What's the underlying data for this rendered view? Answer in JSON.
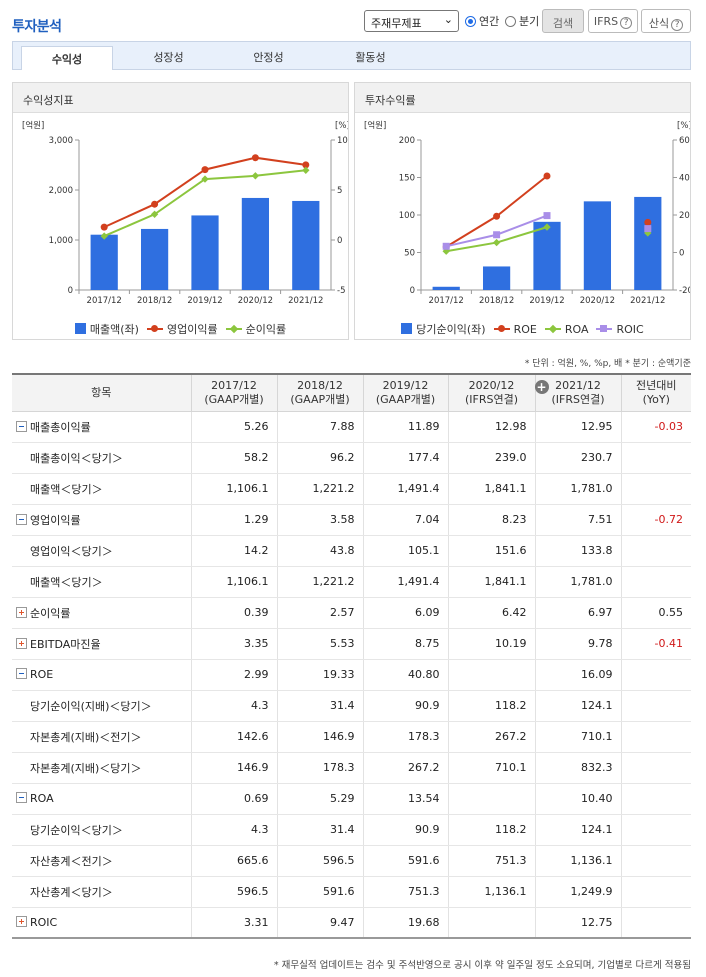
{
  "header": {
    "title": "투자분석",
    "select_value": "주재무제표",
    "radio_annual": "연간",
    "radio_quarter": "분기",
    "search_label": "검색",
    "ifrs_label": "IFRS",
    "calc_label": "산식",
    "help_glyph": "?"
  },
  "tabs": [
    "수익성",
    "성장성",
    "안정성",
    "활동성"
  ],
  "chart_left": {
    "title": "수익성지표",
    "unit_left": "[억원]",
    "unit_right": "[%]",
    "type": "bar-line",
    "categories": [
      "2017/12",
      "2018/12",
      "2019/12",
      "2020/12",
      "2021/12"
    ],
    "ylim_left": [
      0,
      3000
    ],
    "yticks_left": [
      "0",
      "1,000",
      "2,000",
      "3,000"
    ],
    "ylim_right": [
      -5,
      10
    ],
    "yticks_right": [
      "-5",
      "0",
      "5",
      "10"
    ],
    "bars": {
      "name": "매출액(좌)",
      "values": [
        1106.1,
        1221.2,
        1491.4,
        1841.1,
        1781.0
      ],
      "color": "#2f6fe0"
    },
    "lines": [
      {
        "name": "영업이익률",
        "values": [
          1.29,
          3.58,
          7.04,
          8.23,
          7.51
        ],
        "color": "#d2401e",
        "marker": "circle"
      },
      {
        "name": "순이익률",
        "values": [
          0.39,
          2.57,
          6.09,
          6.42,
          6.97
        ],
        "color": "#8cc63e",
        "marker": "diamond"
      }
    ]
  },
  "chart_right": {
    "title": "투자수익률",
    "unit_left": "[억원]",
    "unit_right": "[%]",
    "type": "bar-line",
    "categories": [
      "2017/12",
      "2018/12",
      "2019/12",
      "2020/12",
      "2021/12"
    ],
    "ylim_left": [
      0,
      200
    ],
    "yticks_left": [
      "0",
      "50",
      "100",
      "150",
      "200"
    ],
    "ylim_right": [
      -20,
      60
    ],
    "yticks_right": [
      "-20",
      "0",
      "20",
      "40",
      "60"
    ],
    "bars": {
      "name": "당기순이익(좌)",
      "values": [
        4.3,
        31.4,
        90.9,
        118.2,
        124.1
      ],
      "color": "#2f6fe0"
    },
    "lines": [
      {
        "name": "ROE",
        "values": [
          2.99,
          19.33,
          40.8,
          null,
          16.09
        ],
        "color": "#d2401e",
        "marker": "circle"
      },
      {
        "name": "ROA",
        "values": [
          0.69,
          5.29,
          13.54,
          null,
          10.4
        ],
        "color": "#8cc63e",
        "marker": "diamond"
      },
      {
        "name": "ROIC",
        "values": [
          3.31,
          9.47,
          19.68,
          null,
          12.75
        ],
        "color": "#a98ee8",
        "marker": "square"
      }
    ]
  },
  "unit_note": "* 단위 : 억원, %, %p, 배   * 분기 : 순액기준",
  "table": {
    "item_header": "항목",
    "columns": [
      {
        "period": "2017/12",
        "basis": "(GAAP개별)"
      },
      {
        "period": "2018/12",
        "basis": "(GAAP개별)"
      },
      {
        "period": "2019/12",
        "basis": "(GAAP개별)"
      },
      {
        "period": "2020/12",
        "basis": "(IFRS연결)"
      },
      {
        "period": "2021/12",
        "basis": "(IFRS연결)"
      }
    ],
    "yoy_header": "전년대비",
    "yoy_sub": "(YoY)",
    "expand_glyph": "+",
    "rows": [
      {
        "label": "매출총이익률",
        "toggle": "minus",
        "values": [
          "5.26",
          "7.88",
          "11.89",
          "12.98",
          "12.95"
        ],
        "yoy": "-0.03"
      },
      {
        "label": "매출총이익＜당기＞",
        "toggle": "",
        "values": [
          "58.2",
          "96.2",
          "177.4",
          "239.0",
          "230.7"
        ],
        "yoy": ""
      },
      {
        "label": "매출액＜당기＞",
        "toggle": "",
        "values": [
          "1,106.1",
          "1,221.2",
          "1,491.4",
          "1,841.1",
          "1,781.0"
        ],
        "yoy": ""
      },
      {
        "label": "영업이익률",
        "toggle": "minus",
        "values": [
          "1.29",
          "3.58",
          "7.04",
          "8.23",
          "7.51"
        ],
        "yoy": "-0.72"
      },
      {
        "label": "영업이익＜당기＞",
        "toggle": "",
        "values": [
          "14.2",
          "43.8",
          "105.1",
          "151.6",
          "133.8"
        ],
        "yoy": ""
      },
      {
        "label": "매출액＜당기＞",
        "toggle": "",
        "values": [
          "1,106.1",
          "1,221.2",
          "1,491.4",
          "1,841.1",
          "1,781.0"
        ],
        "yoy": ""
      },
      {
        "label": "순이익률",
        "toggle": "plus",
        "values": [
          "0.39",
          "2.57",
          "6.09",
          "6.42",
          "6.97"
        ],
        "yoy": "0.55"
      },
      {
        "label": "EBITDA마진율",
        "toggle": "plus",
        "values": [
          "3.35",
          "5.53",
          "8.75",
          "10.19",
          "9.78"
        ],
        "yoy": "-0.41"
      },
      {
        "label": "ROE",
        "toggle": "minus",
        "values": [
          "2.99",
          "19.33",
          "40.80",
          "",
          "16.09"
        ],
        "yoy": ""
      },
      {
        "label": "당기순이익(지배)＜당기＞",
        "toggle": "",
        "values": [
          "4.3",
          "31.4",
          "90.9",
          "118.2",
          "124.1"
        ],
        "yoy": ""
      },
      {
        "label": "자본총계(지배)＜전기＞",
        "toggle": "",
        "values": [
          "142.6",
          "146.9",
          "178.3",
          "267.2",
          "710.1"
        ],
        "yoy": ""
      },
      {
        "label": "자본총계(지배)＜당기＞",
        "toggle": "",
        "values": [
          "146.9",
          "178.3",
          "267.2",
          "710.1",
          "832.3"
        ],
        "yoy": ""
      },
      {
        "label": "ROA",
        "toggle": "minus",
        "values": [
          "0.69",
          "5.29",
          "13.54",
          "",
          "10.40"
        ],
        "yoy": ""
      },
      {
        "label": "당기순이익＜당기＞",
        "toggle": "",
        "values": [
          "4.3",
          "31.4",
          "90.9",
          "118.2",
          "124.1"
        ],
        "yoy": ""
      },
      {
        "label": "자산총계＜전기＞",
        "toggle": "",
        "values": [
          "665.6",
          "596.5",
          "591.6",
          "751.3",
          "1,136.1"
        ],
        "yoy": ""
      },
      {
        "label": "자산총계＜당기＞",
        "toggle": "",
        "values": [
          "596.5",
          "591.6",
          "751.3",
          "1,136.1",
          "1,249.9"
        ],
        "yoy": ""
      },
      {
        "label": "ROIC",
        "toggle": "plus",
        "values": [
          "3.31",
          "9.47",
          "19.68",
          "",
          "12.75"
        ],
        "yoy": ""
      }
    ]
  },
  "footnote": "* 재무실적 업데이트는 검수 및 주석반영으로 공시 이후 약 일주일 정도 소요되며, 기업별로 다르게 적용됨"
}
